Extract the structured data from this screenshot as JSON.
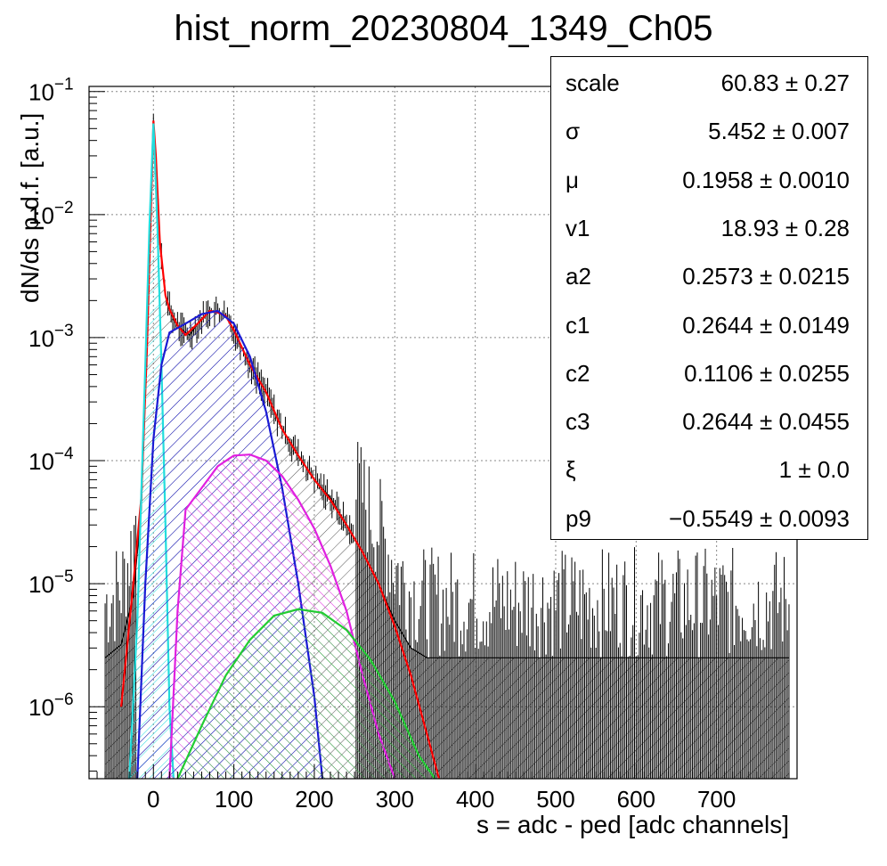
{
  "chart_data": {
    "type": "area",
    "title": "hist_norm_20230804_1349_Ch05",
    "xlabel": "s = adc - ped [adc channels]",
    "ylabel": "dN/ds p.d.f. [a.u.]",
    "x_range": [
      -80,
      800
    ],
    "y_range": [
      2.6e-07,
      0.11
    ],
    "y_scale": "log",
    "grid": true,
    "x_ticks": [
      0,
      100,
      200,
      300,
      400,
      500,
      600,
      700
    ],
    "y_ticks": [
      {
        "value": 0.1,
        "base": "10",
        "exp": "−1"
      },
      {
        "value": 0.01,
        "base": "10",
        "exp": "−2"
      },
      {
        "value": 0.001,
        "base": "10",
        "exp": "−3"
      },
      {
        "value": 0.0001,
        "base": "10",
        "exp": "−4"
      },
      {
        "value": 1e-05,
        "base": "10",
        "exp": "−5"
      },
      {
        "value": 1e-06,
        "base": "10",
        "exp": "−6"
      }
    ],
    "series": [
      {
        "color": "#000000",
        "style": "histogram",
        "x": [
          -60,
          -40,
          -25,
          -15,
          -8,
          -3,
          0,
          3,
          8,
          15,
          20,
          25,
          30,
          40,
          45,
          55,
          70,
          80,
          90,
          100,
          120,
          140,
          160,
          180,
          200,
          220,
          240,
          260,
          280,
          300,
          320,
          340,
          360,
          400,
          450,
          500,
          600,
          700,
          790
        ],
        "y": [
          2.5e-06,
          3.2e-06,
          8e-06,
          4e-05,
          0.0008,
          0.012,
          0.058,
          0.03,
          0.006,
          0.0022,
          0.0017,
          0.0014,
          0.00125,
          0.0011,
          0.00105,
          0.0013,
          0.00165,
          0.0016,
          0.0015,
          0.00115,
          0.0006,
          0.00036,
          0.00018,
          0.00011,
          7e-05,
          5e-05,
          3e-05,
          1.8e-05,
          1e-05,
          5e-06,
          3e-06,
          2.5e-06,
          2.5e-06,
          2.5e-06,
          2.5e-06,
          2.5e-06,
          2.5e-06,
          2.5e-06,
          2.5e-06
        ]
      },
      {
        "color": "#ff0000",
        "style": "line",
        "x": [
          -40,
          -25,
          -15,
          -8,
          -3,
          0,
          3,
          8,
          15,
          20,
          30,
          40,
          55,
          70,
          80,
          90,
          100,
          120,
          140,
          160,
          180,
          200,
          220,
          240,
          260,
          280,
          300,
          320,
          340,
          355
        ],
        "y": [
          1e-06,
          1e-05,
          5e-05,
          0.0008,
          0.012,
          0.058,
          0.03,
          0.006,
          0.0022,
          0.0017,
          0.00125,
          0.00105,
          0.0013,
          0.00165,
          0.0016,
          0.0015,
          0.00115,
          0.0006,
          0.00036,
          0.00018,
          0.00011,
          7e-05,
          4.8e-05,
          3e-05,
          1.8e-05,
          1e-05,
          4.5e-06,
          1.8e-06,
          6e-07,
          2.6e-07
        ]
      },
      {
        "color": "#22dddd",
        "style": "filled",
        "x": [
          -30,
          -20,
          -10,
          -5,
          0,
          5,
          10,
          15,
          20,
          25
        ],
        "y": [
          2.6e-07,
          5e-06,
          0.0006,
          0.008,
          0.055,
          0.008,
          0.0006,
          3e-05,
          1e-06,
          2.6e-07
        ]
      },
      {
        "color": "#1a1ad4",
        "style": "filled",
        "x": [
          -20,
          -10,
          0,
          10,
          20,
          40,
          60,
          80,
          100,
          120,
          140,
          160,
          180,
          200,
          210
        ],
        "y": [
          2.6e-07,
          1e-05,
          0.00015,
          0.0006,
          0.0011,
          0.0013,
          0.00155,
          0.00165,
          0.0013,
          0.0007,
          0.00025,
          6e-05,
          1e-05,
          1.2e-06,
          2.6e-07
        ]
      },
      {
        "color": "#e020e0",
        "style": "filled",
        "x": [
          20,
          30,
          40,
          60,
          80,
          100,
          120,
          140,
          160,
          180,
          200,
          220,
          240,
          260,
          280,
          300
        ],
        "y": [
          2.6e-07,
          6e-06,
          4e-05,
          6e-05,
          9e-05,
          0.00011,
          0.000112,
          0.0001,
          7.5e-05,
          4.8e-05,
          2.8e-05,
          1.4e-05,
          6e-06,
          1.8e-06,
          6e-07,
          2.6e-07
        ]
      },
      {
        "color": "#22cc33",
        "style": "filled",
        "x": [
          30,
          60,
          90,
          120,
          150,
          180,
          210,
          240,
          270,
          300,
          330,
          350
        ],
        "y": [
          2.6e-07,
          7e-07,
          1.8e-06,
          3.5e-06,
          5.5e-06,
          6.2e-06,
          5.8e-06,
          4.2e-06,
          2.4e-06,
          1.1e-06,
          4e-07,
          2.6e-07
        ]
      }
    ]
  },
  "stats": [
    {
      "name": "scale",
      "value": "60.83 ± 0.27"
    },
    {
      "name": "σ",
      "value": "5.452 ± 0.007"
    },
    {
      "name": "μ",
      "value": "0.1958 ± 0.0010"
    },
    {
      "name": "v1",
      "value": "18.93 ± 0.28"
    },
    {
      "name": "a2",
      "value": "0.2573 ± 0.0215"
    },
    {
      "name": "c1",
      "value": "0.2644 ± 0.0149"
    },
    {
      "name": "c2",
      "value": "0.1106 ± 0.0255"
    },
    {
      "name": "c3",
      "value": "0.2644 ± 0.0455"
    },
    {
      "name": "ξ",
      "value": "1 ± 0.0"
    },
    {
      "name": "p9",
      "value": "−0.5549 ± 0.0093"
    }
  ]
}
